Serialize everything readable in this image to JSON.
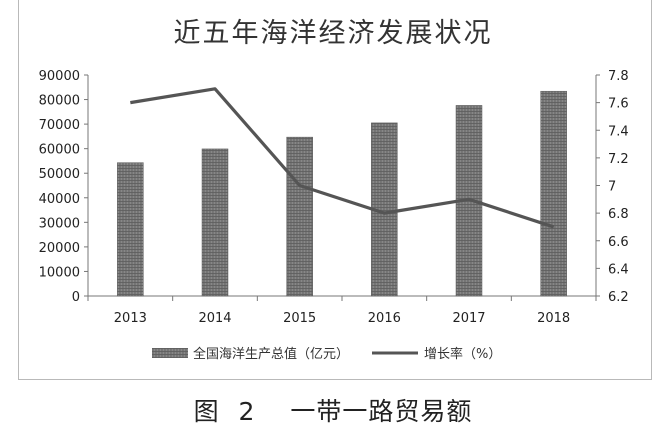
{
  "chart_data": {
    "type": "bar",
    "title": "近五年海洋经济发展状况",
    "categories": [
      "2013",
      "2014",
      "2015",
      "2016",
      "2017",
      "2018"
    ],
    "series": [
      {
        "name": "全国海洋生产总值（亿元）",
        "type": "bar",
        "axis": "left",
        "values": [
          54300,
          59900,
          64700,
          70500,
          77600,
          83400
        ]
      },
      {
        "name": "增长率（%）",
        "type": "line",
        "axis": "right",
        "values": [
          7.6,
          7.7,
          7.0,
          6.8,
          6.9,
          6.7
        ]
      }
    ],
    "y_left": {
      "min": 0,
      "max": 90000,
      "ticks": [
        "0",
        "10000",
        "20000",
        "30000",
        "40000",
        "50000",
        "60000",
        "70000",
        "80000",
        "90000"
      ]
    },
    "y_right": {
      "min": 6.2,
      "max": 7.8,
      "ticks": [
        "6.2",
        "6.4",
        "6.6",
        "6.8",
        "7",
        "7.2",
        "7.4",
        "7.6",
        "7.8"
      ]
    },
    "legend_position": "bottom",
    "grid": false
  },
  "caption": {
    "prefix": "图",
    "number": "2",
    "text": "一带一路贸易额"
  }
}
